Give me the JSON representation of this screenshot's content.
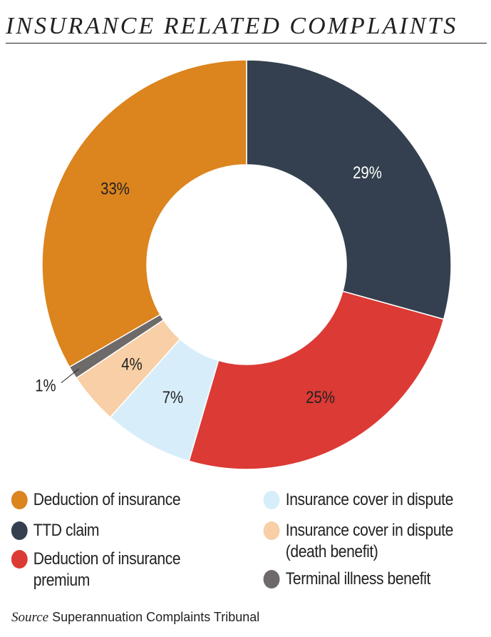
{
  "title": "INSURANCE RELATED COMPLAINTS",
  "source_label": "Source",
  "source_text": "Superannuation Complaints Tribunal",
  "chart_data": {
    "type": "pie",
    "donut": true,
    "title": "INSURANCE RELATED COMPLAINTS",
    "legend_position": "bottom",
    "slices": [
      {
        "name": "TTD claim",
        "value": 29,
        "label": "29%",
        "color": "#34404F",
        "label_color": "#ffffff"
      },
      {
        "name": "Deduction of insurance premium",
        "value": 25,
        "label": "25%",
        "color": "#DC3A35",
        "label_color": "#222222"
      },
      {
        "name": "Insurance cover in dispute",
        "value": 7,
        "label": "7%",
        "color": "#D7EEFA",
        "label_color": "#222222"
      },
      {
        "name": "Insurance cover in dispute (death benefit)",
        "value": 4,
        "label": "4%",
        "color": "#F8CFA6",
        "label_color": "#222222"
      },
      {
        "name": "Terminal illness benefit",
        "value": 1,
        "label": "1%",
        "color": "#6E6A69",
        "label_color": "#222222"
      },
      {
        "name": "Deduction of insurance",
        "value": 33,
        "label": "33%",
        "color": "#DC841E",
        "label_color": "#222222"
      }
    ]
  },
  "legend": [
    {
      "lines": [
        "Deduction of insurance"
      ],
      "color": "#DC841E"
    },
    {
      "lines": [
        "TTD claim"
      ],
      "color": "#34404F"
    },
    {
      "lines": [
        "Deduction of insurance",
        "premium"
      ],
      "color": "#DC3A35"
    },
    {
      "lines": [
        "Insurance cover in dispute"
      ],
      "color": "#D7EEFA"
    },
    {
      "lines": [
        "Insurance cover in dispute",
        "(death benefit)"
      ],
      "color": "#F8CFA6"
    },
    {
      "lines": [
        "Terminal illness benefit"
      ],
      "color": "#6E6A69"
    }
  ]
}
